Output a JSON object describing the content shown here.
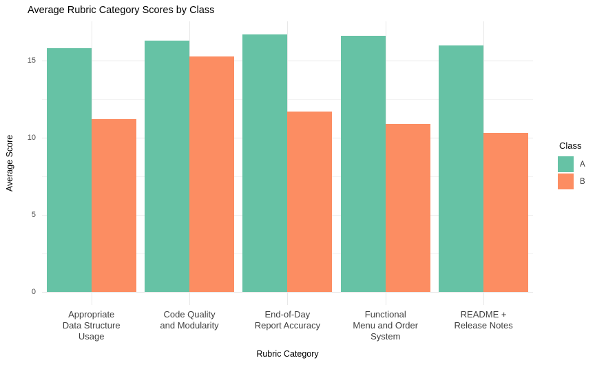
{
  "chart_data": {
    "type": "bar",
    "title": "Average Rubric Category Scores by Class",
    "xlabel": "Rubric Category",
    "ylabel": "Average Score",
    "categories": [
      "Appropriate Data Structure Usage",
      "Code Quality and Modularity",
      "End-of-Day Report Accuracy",
      "Functional Menu and Order System",
      "README + Release Notes"
    ],
    "category_lines": [
      [
        "Appropriate",
        "Data Structure",
        "Usage"
      ],
      [
        "Code Quality",
        "and Modularity"
      ],
      [
        "End-of-Day",
        "Report Accuracy"
      ],
      [
        "Functional",
        "Menu and Order",
        "System"
      ],
      [
        "README +",
        "Release Notes"
      ]
    ],
    "series": [
      {
        "name": "A",
        "color": "#66C2A5",
        "values": [
          15.8,
          16.3,
          16.7,
          16.6,
          16.0
        ]
      },
      {
        "name": "B",
        "color": "#FC8D62",
        "values": [
          11.2,
          15.3,
          11.7,
          10.9,
          10.3
        ]
      }
    ],
    "legend_title": "Class",
    "legend_position": "right",
    "ylim": [
      0,
      17.5
    ],
    "yticks": [
      0,
      5,
      10,
      15
    ],
    "yticks_minor": [
      2.5,
      7.5,
      12.5
    ],
    "grid": true,
    "background_color": "#FFFFFF",
    "grid_color_major": "#E8E8E8",
    "grid_color_minor": "#F3F3F3",
    "text_color_ticks": "#4D4D4D"
  }
}
